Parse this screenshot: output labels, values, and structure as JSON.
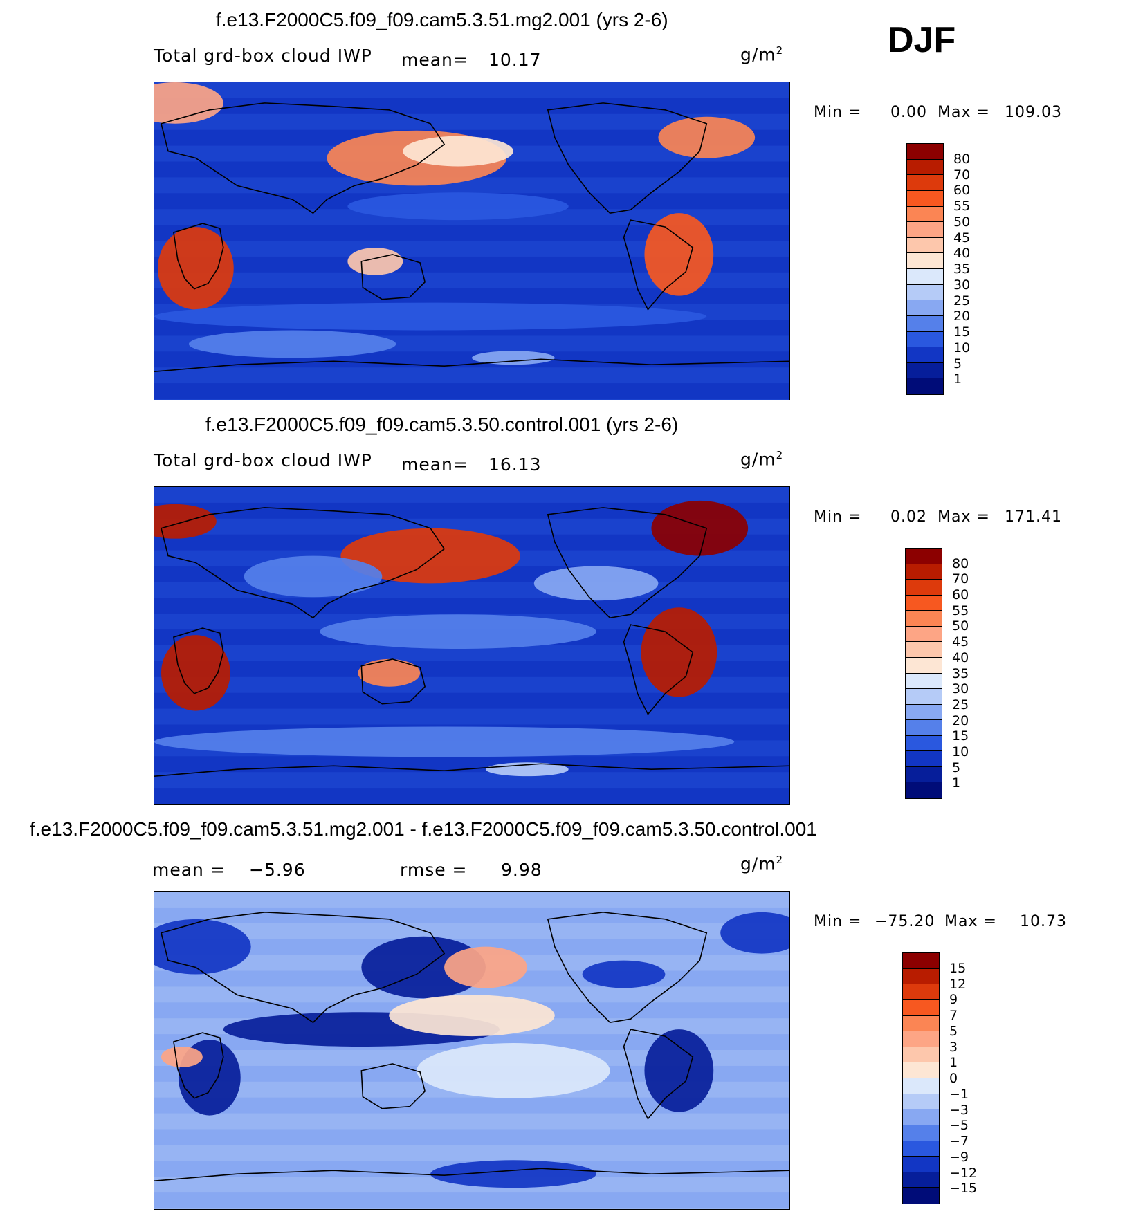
{
  "season": "DJF",
  "panels": [
    {
      "title": "f.e13.F2000C5.f09_f09.cam5.3.51.mg2.001 (yrs 2-6)",
      "variable": "Total grd-box cloud IWP",
      "mean_label": "mean=",
      "mean_value": "10.17",
      "units": "g/m",
      "units_exp": "2",
      "min_label": "Min =",
      "min_value": "0.00",
      "max_label": "Max =",
      "max_value": "109.03",
      "colorbar": {
        "levels": [
          "80",
          "70",
          "60",
          "55",
          "50",
          "45",
          "40",
          "35",
          "30",
          "25",
          "20",
          "15",
          "10",
          "5",
          "1"
        ],
        "colors": [
          "#8c0000",
          "#b81c00",
          "#dd3a0c",
          "#f75820",
          "#fb8554",
          "#fda585",
          "#fdc7ac",
          "#fde6d4",
          "#dbe8fb",
          "#b5cbf7",
          "#88a8f2",
          "#5580ea",
          "#2a58df",
          "#1236c4",
          "#061e9a",
          "#000c78"
        ]
      },
      "map_theme": "mg2"
    },
    {
      "title": "f.e13.F2000C5.f09_f09.cam5.3.50.control.001 (yrs 2-6)",
      "variable": "Total grd-box cloud IWP",
      "mean_label": "mean=",
      "mean_value": "16.13",
      "units": "g/m",
      "units_exp": "2",
      "min_label": "Min =",
      "min_value": "0.02",
      "max_label": "Max =",
      "max_value": "171.41",
      "colorbar": {
        "levels": [
          "80",
          "70",
          "60",
          "55",
          "50",
          "45",
          "40",
          "35",
          "30",
          "25",
          "20",
          "15",
          "10",
          "5",
          "1"
        ],
        "colors": [
          "#8c0000",
          "#b81c00",
          "#dd3a0c",
          "#f75820",
          "#fb8554",
          "#fda585",
          "#fdc7ac",
          "#fde6d4",
          "#dbe8fb",
          "#b5cbf7",
          "#88a8f2",
          "#5580ea",
          "#2a58df",
          "#1236c4",
          "#061e9a",
          "#000c78"
        ]
      },
      "map_theme": "control"
    },
    {
      "title": "f.e13.F2000C5.f09_f09.cam5.3.51.mg2.001 - f.e13.F2000C5.f09_f09.cam5.3.50.control.001",
      "mean_label": "mean =",
      "mean_value": "−5.96",
      "rmse_label": "rmse =",
      "rmse_value": "9.98",
      "units": "g/m",
      "units_exp": "2",
      "min_label": "Min =",
      "min_value": "−75.20",
      "max_label": "Max =",
      "max_value": "10.73",
      "colorbar": {
        "levels": [
          "15",
          "12",
          "9",
          "7",
          "5",
          "3",
          "1",
          "0",
          "−1",
          "−3",
          "−5",
          "−7",
          "−9",
          "−12",
          "−15"
        ],
        "colors": [
          "#8c0000",
          "#b81c00",
          "#dd3a0c",
          "#f75820",
          "#fb8554",
          "#fda585",
          "#fdc7ac",
          "#fde6d4",
          "#dbe8fb",
          "#b5cbf7",
          "#88a8f2",
          "#5580ea",
          "#2a58df",
          "#1236c4",
          "#061e9a",
          "#000c78"
        ]
      },
      "map_theme": "diff"
    }
  ]
}
